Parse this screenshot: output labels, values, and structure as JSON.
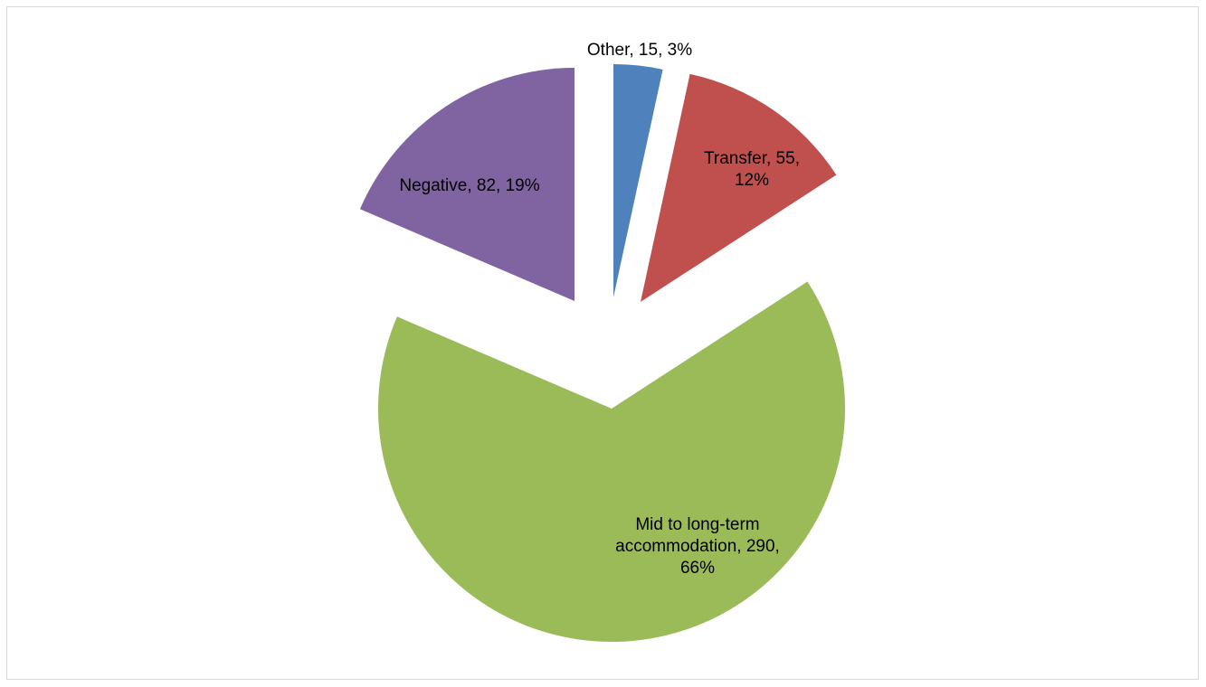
{
  "chart_data": {
    "type": "pie",
    "slices": [
      {
        "label": "Other",
        "value": 15,
        "percent": "3%",
        "color": "#4f81bd",
        "label_lines": [
          "Other, 15, 3%"
        ]
      },
      {
        "label": "Transfer",
        "value": 55,
        "percent": "12%",
        "color": "#c0504d",
        "label_lines": [
          "Transfer, 55,",
          "12%"
        ]
      },
      {
        "label": "Mid to long-term accommodation",
        "value": 290,
        "percent": "66%",
        "color": "#9bbb59",
        "label_lines": [
          "Mid to long-term",
          "accommodation, 290,",
          "66%"
        ]
      },
      {
        "label": "Negative",
        "value": 82,
        "percent": "19%",
        "color": "#8064a2",
        "label_lines": [
          "Negative, 82, 19%"
        ]
      }
    ],
    "start_angle_deg": 0,
    "direction": "clockwise",
    "exploded": true,
    "legend": "none"
  }
}
